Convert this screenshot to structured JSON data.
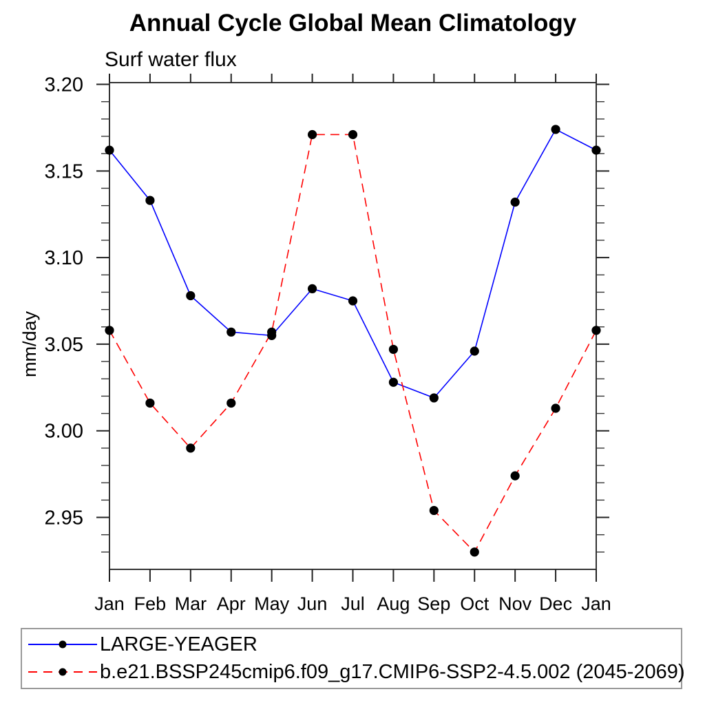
{
  "page": {
    "background": "#ffffff"
  },
  "chart_data": {
    "type": "line",
    "title": "Annual Cycle Global Mean Climatology",
    "subtitle": "Surf water flux",
    "xlabel": "",
    "ylabel": "mm/day",
    "categories": [
      "Jan",
      "Feb",
      "Mar",
      "Apr",
      "May",
      "Jun",
      "Jul",
      "Aug",
      "Sep",
      "Oct",
      "Nov",
      "Dec",
      "Jan"
    ],
    "y_tick_labels": [
      "3.20",
      "3.15",
      "3.10",
      "3.05",
      "3.00",
      "2.95"
    ],
    "y_major_ticks": [
      3.2,
      3.15,
      3.1,
      3.05,
      3.0,
      2.95
    ],
    "y_minor_step": 0.01,
    "ylim": [
      2.92,
      3.201
    ],
    "grid": false,
    "legend_position": "bottom-left-box",
    "marker_color": "#000000",
    "axis_color": "#333333",
    "series": [
      {
        "name": "LARGE-YEAGER",
        "color": "#0000ff",
        "style": "solid",
        "marker": "black-dot",
        "values": [
          3.162,
          3.133,
          3.078,
          3.057,
          3.055,
          3.082,
          3.075,
          3.028,
          3.019,
          3.046,
          3.132,
          3.174,
          3.162
        ]
      },
      {
        "name": "b.e21.BSSP245cmip6.f09_g17.CMIP6-SSP2-4.5.002 (2045-2069)",
        "color": "#ff0000",
        "style": "dashed",
        "marker": "black-dot",
        "values": [
          3.058,
          3.016,
          2.99,
          3.016,
          3.057,
          3.171,
          3.171,
          3.047,
          2.954,
          2.93,
          2.974,
          3.013,
          3.058
        ]
      }
    ]
  }
}
